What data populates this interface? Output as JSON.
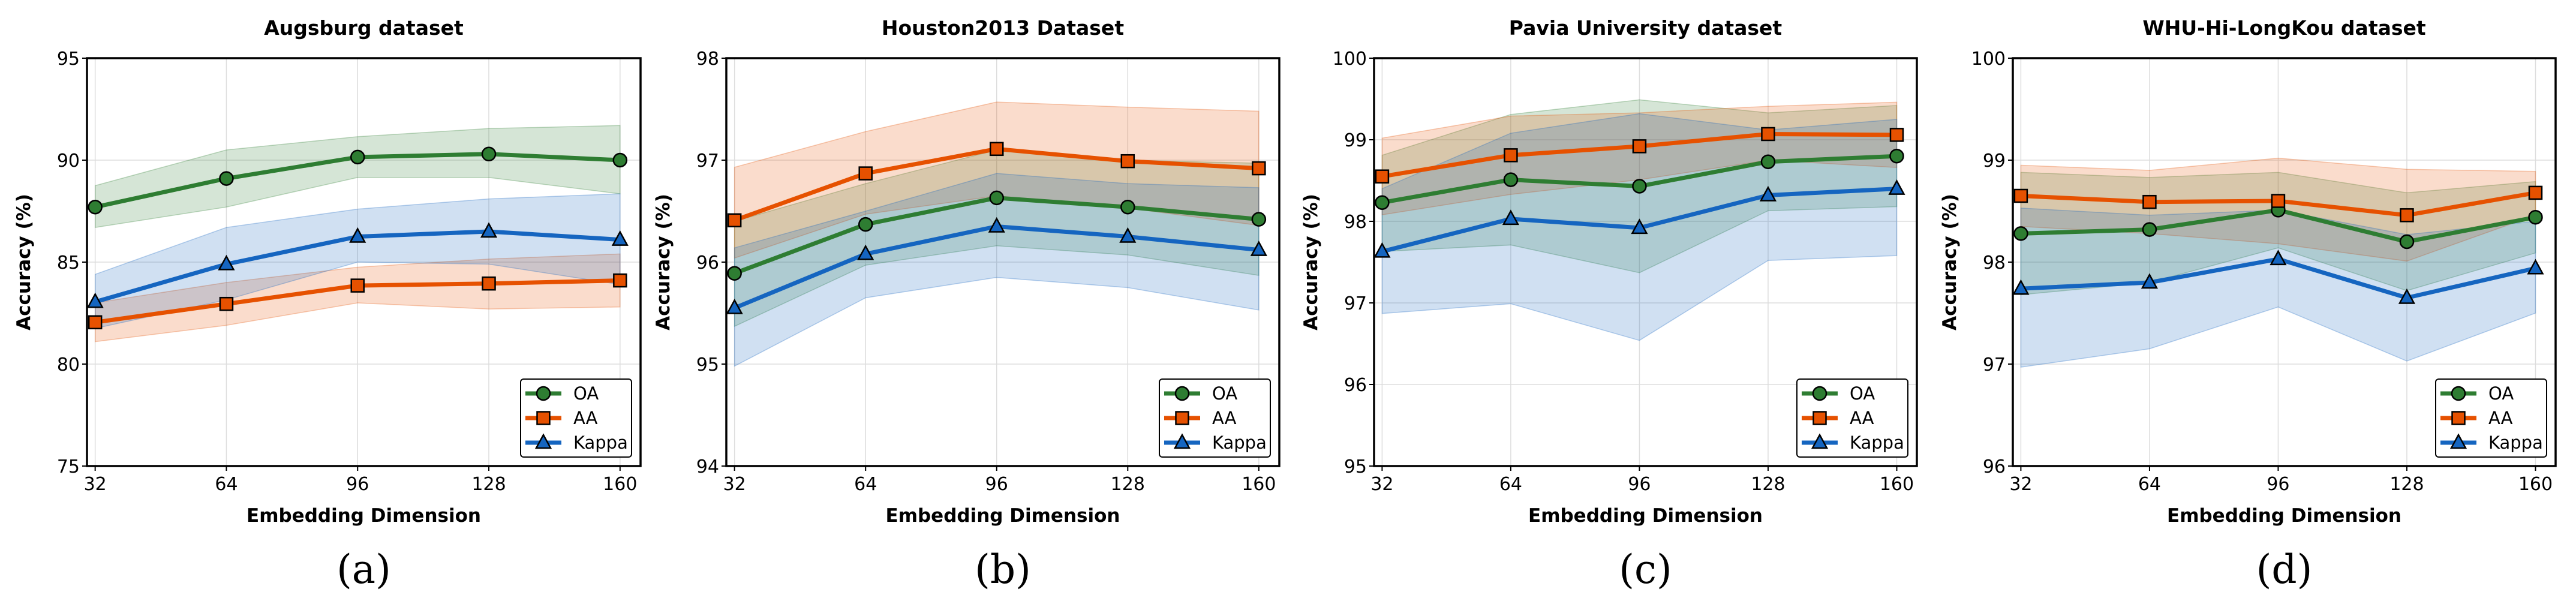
{
  "colors": {
    "OA": "#2e7d32",
    "AA": "#e65100",
    "Kappa": "#1565c0"
  },
  "chart_data": [
    {
      "type": "line",
      "panel_label": "(a)",
      "title": "Augsburg dataset",
      "xlabel": "Embedding Dimension",
      "ylabel": "Accuracy (%)",
      "x": [
        32,
        64,
        96,
        128,
        160
      ],
      "xlim": [
        30,
        165
      ],
      "ylim": [
        75,
        95
      ],
      "yticks": [
        75,
        80,
        85,
        90,
        95
      ],
      "grid": true,
      "legend": "lower-right",
      "series": [
        {
          "name": "OA",
          "marker": "circle",
          "values": [
            87.7,
            89.1,
            90.15,
            90.3,
            90.0
          ],
          "upper": [
            88.75,
            90.5,
            91.15,
            91.55,
            91.7
          ],
          "lower": [
            86.7,
            87.7,
            89.15,
            89.15,
            88.35
          ]
        },
        {
          "name": "AA",
          "marker": "square",
          "values": [
            82.05,
            82.95,
            83.85,
            83.95,
            84.1
          ],
          "upper": [
            83.0,
            84.0,
            84.75,
            85.15,
            85.4
          ],
          "lower": [
            81.1,
            81.9,
            83.0,
            82.7,
            82.8
          ]
        },
        {
          "name": "Kappa",
          "marker": "triangle",
          "values": [
            83.05,
            84.9,
            86.25,
            86.5,
            86.1
          ],
          "upper": [
            84.4,
            86.7,
            87.6,
            88.1,
            88.35
          ],
          "lower": [
            81.75,
            83.15,
            85.0,
            84.9,
            83.9
          ]
        }
      ]
    },
    {
      "type": "line",
      "panel_label": "(b)",
      "title": "Houston2013 Dataset",
      "xlabel": "Embedding Dimension",
      "ylabel": "Accuracy (%)",
      "x": [
        32,
        64,
        96,
        128,
        160
      ],
      "xlim": [
        30,
        165
      ],
      "ylim": [
        94,
        98
      ],
      "yticks": [
        94,
        95,
        96,
        97,
        98
      ],
      "grid": true,
      "legend": "lower-right",
      "series": [
        {
          "name": "OA",
          "marker": "circle",
          "values": [
            95.89,
            96.37,
            96.63,
            96.54,
            96.42
          ],
          "upper": [
            96.4,
            96.77,
            97.1,
            97.0,
            96.97
          ],
          "lower": [
            95.37,
            95.97,
            96.16,
            96.07,
            95.87
          ]
        },
        {
          "name": "AA",
          "marker": "square",
          "values": [
            96.41,
            96.87,
            97.11,
            96.99,
            96.92
          ],
          "upper": [
            96.93,
            97.28,
            97.57,
            97.52,
            97.48
          ],
          "lower": [
            96.04,
            96.47,
            96.65,
            96.53,
            96.36
          ]
        },
        {
          "name": "Kappa",
          "marker": "triangle",
          "values": [
            95.55,
            96.08,
            96.35,
            96.25,
            96.12
          ],
          "upper": [
            96.14,
            96.5,
            96.87,
            96.77,
            96.73
          ],
          "lower": [
            94.98,
            95.65,
            95.85,
            95.75,
            95.53
          ]
        }
      ]
    },
    {
      "type": "line",
      "panel_label": "(c)",
      "title": "Pavia University dataset",
      "xlabel": "Embedding Dimension",
      "ylabel": "Accuracy (%)",
      "x": [
        32,
        64,
        96,
        128,
        160
      ],
      "xlim": [
        30,
        165
      ],
      "ylim": [
        95,
        100
      ],
      "yticks": [
        95,
        96,
        97,
        98,
        99,
        100
      ],
      "grid": true,
      "legend": "lower-right",
      "series": [
        {
          "name": "OA",
          "marker": "circle",
          "values": [
            98.23,
            98.51,
            98.43,
            98.73,
            98.8
          ],
          "upper": [
            98.81,
            99.31,
            99.49,
            99.33,
            99.42
          ],
          "lower": [
            97.63,
            97.71,
            97.37,
            98.13,
            98.18
          ]
        },
        {
          "name": "AA",
          "marker": "square",
          "values": [
            98.55,
            98.81,
            98.92,
            99.07,
            99.06
          ],
          "upper": [
            99.02,
            99.29,
            99.33,
            99.41,
            99.46
          ],
          "lower": [
            98.08,
            98.33,
            98.51,
            98.75,
            98.66
          ]
        },
        {
          "name": "Kappa",
          "marker": "triangle",
          "values": [
            97.63,
            98.03,
            97.92,
            98.32,
            98.4
          ],
          "upper": [
            98.4,
            99.08,
            99.32,
            99.12,
            99.25
          ],
          "lower": [
            96.87,
            96.99,
            96.54,
            97.52,
            97.58
          ]
        }
      ]
    },
    {
      "type": "line",
      "panel_label": "(d)",
      "title": "WHU-Hi-LongKou dataset",
      "xlabel": "Embedding Dimension",
      "ylabel": "Accuracy (%)",
      "x": [
        32,
        64,
        96,
        128,
        160
      ],
      "xlim": [
        30,
        165
      ],
      "ylim": [
        96,
        100
      ],
      "yticks": [
        96,
        97,
        98,
        99,
        100
      ],
      "grid": true,
      "legend": "lower-right",
      "series": [
        {
          "name": "OA",
          "marker": "circle",
          "values": [
            98.28,
            98.32,
            98.51,
            98.2,
            98.44
          ],
          "upper": [
            98.88,
            98.83,
            98.88,
            98.68,
            98.79
          ],
          "lower": [
            97.68,
            97.8,
            98.14,
            97.72,
            98.09
          ]
        },
        {
          "name": "AA",
          "marker": "square",
          "values": [
            98.65,
            98.59,
            98.6,
            98.46,
            98.68
          ],
          "upper": [
            98.95,
            98.9,
            99.02,
            98.91,
            98.89
          ],
          "lower": [
            98.35,
            98.28,
            98.18,
            98.01,
            98.46
          ]
        },
        {
          "name": "Kappa",
          "marker": "triangle",
          "values": [
            97.74,
            97.8,
            98.03,
            97.65,
            97.94
          ],
          "upper": [
            98.53,
            98.46,
            98.51,
            98.27,
            98.4
          ],
          "lower": [
            96.97,
            97.15,
            97.56,
            97.03,
            97.5
          ]
        }
      ]
    }
  ]
}
